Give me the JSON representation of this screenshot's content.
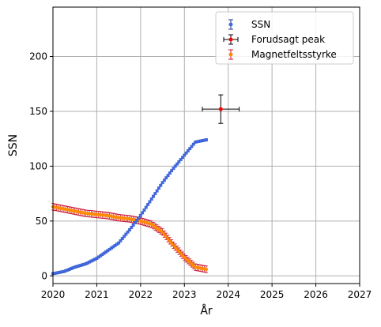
{
  "chart_data": {
    "type": "scatter",
    "xlabel": "År",
    "ylabel": "SSN",
    "xlim": [
      2020,
      2027
    ],
    "ylim": [
      -7,
      245
    ],
    "grid": true,
    "legend_position": "top-right",
    "x_ticks": [
      "2020",
      "2021",
      "2022",
      "2023",
      "2024",
      "2025",
      "2026",
      "2027"
    ],
    "y_ticks": [
      "0",
      "50",
      "100",
      "150",
      "200"
    ],
    "colors": {
      "ssn": "#4169e1",
      "ssn_err": "#1f2f8a",
      "peak": "#ff0000",
      "peak_err": "#000000",
      "mag": "#ff8c00",
      "mag_err": "#c8102e",
      "grid": "#b0b0b0"
    },
    "series": [
      {
        "name": "SSN",
        "marker": "circle",
        "x": [
          2020.0,
          2020.25,
          2020.5,
          2020.75,
          2021.0,
          2021.25,
          2021.5,
          2021.75,
          2022.0,
          2022.25,
          2022.5,
          2022.75,
          2023.0,
          2023.25,
          2023.5
        ],
        "y": [
          2,
          4,
          8,
          11,
          16,
          23,
          30,
          42,
          55,
          70,
          85,
          98,
          110,
          122,
          124
        ],
        "yerr": 1
      },
      {
        "name": "Forudsagt peak",
        "marker": "circle",
        "x": [
          2023.83
        ],
        "y": [
          152
        ],
        "yerr": 13,
        "xerr": 0.42
      },
      {
        "name": "Magnetfeltsstyrke",
        "marker": "circle",
        "x": [
          2020.0,
          2020.25,
          2020.5,
          2020.75,
          2021.0,
          2021.25,
          2021.5,
          2021.75,
          2022.0,
          2022.25,
          2022.5,
          2022.75,
          2023.0,
          2023.25,
          2023.5
        ],
        "y": [
          63,
          61,
          59,
          57,
          56,
          55,
          53,
          52,
          50,
          47,
          40,
          28,
          17,
          8,
          6
        ],
        "yerr": 3
      }
    ]
  }
}
